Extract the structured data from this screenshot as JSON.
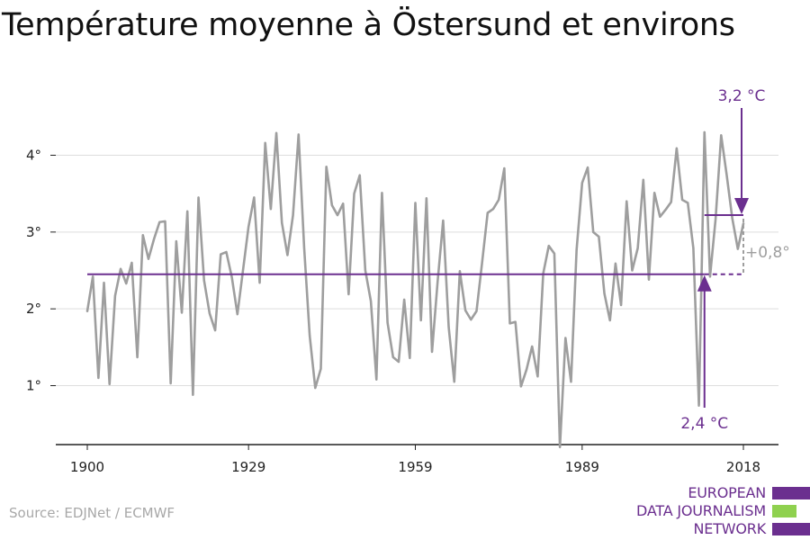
{
  "title": "Température moyenne à Östersund et environs",
  "source": "Source: EDJNet / ECMWF",
  "logo": {
    "lines": [
      "EUROPEAN",
      "DATA JOURNALISM",
      "NETWORK"
    ],
    "colors": {
      "purple": "#6b2f8f",
      "green": "#8fd14f"
    }
  },
  "colors": {
    "series": "#9e9e9e",
    "reference": "#6b2f8f",
    "grid": "#dddddd",
    "axis": "#222222"
  },
  "chart_data": {
    "type": "line",
    "title": "Température moyenne à Östersund et environs",
    "xlabel": "",
    "ylabel": "",
    "xlim": [
      1900,
      2018
    ],
    "ylim": [
      0.2,
      4.6
    ],
    "xticks": [
      1900,
      1929,
      1959,
      1989,
      2018
    ],
    "xtick_labels": [
      "1900",
      "1929",
      "1959",
      "1989",
      "2018"
    ],
    "yticks": [
      1,
      2,
      3,
      4
    ],
    "ytick_labels": [
      "1°",
      "2°",
      "3°",
      "4°"
    ],
    "grid": "horizontal",
    "series": [
      {
        "x": [
          1900,
          1901,
          1902,
          1903,
          1904,
          1905,
          1906,
          1907,
          1908,
          1909,
          1910,
          1911,
          1912,
          1913,
          1914,
          1915,
          1916,
          1917,
          1918,
          1919,
          1920,
          1921,
          1922,
          1923,
          1924,
          1925,
          1926,
          1927,
          1928,
          1929,
          1930,
          1931,
          1932,
          1933,
          1934,
          1935,
          1936,
          1937,
          1938,
          1939,
          1940,
          1941,
          1942,
          1943,
          1944,
          1945,
          1946,
          1947,
          1948,
          1949,
          1950,
          1951,
          1952,
          1953,
          1954,
          1955,
          1956,
          1957,
          1958,
          1959,
          1960,
          1961,
          1962,
          1963,
          1964,
          1965,
          1966,
          1967,
          1968,
          1969,
          1970,
          1971,
          1972,
          1973,
          1974,
          1975,
          1976,
          1977,
          1978,
          1979,
          1980,
          1981,
          1982,
          1983,
          1984,
          1985,
          1986,
          1987,
          1988,
          1989,
          1990,
          1991,
          1992,
          1993,
          1994,
          1995,
          1996,
          1997,
          1998,
          1999,
          2000,
          2001,
          2002,
          2003,
          2004,
          2005,
          2006,
          2007,
          2008,
          2009,
          2010,
          2011,
          2012,
          2013,
          2014,
          2015,
          2016,
          2017,
          2018
        ],
        "values": [
          1.97,
          2.42,
          1.1,
          2.34,
          1.02,
          2.17,
          2.52,
          2.33,
          2.6,
          1.37,
          2.96,
          2.65,
          2.91,
          3.13,
          3.14,
          1.03,
          2.88,
          1.95,
          3.27,
          0.88,
          3.45,
          2.37,
          1.94,
          1.72,
          2.71,
          2.74,
          2.41,
          1.93,
          2.5,
          3.07,
          3.45,
          2.34,
          4.16,
          3.3,
          4.29,
          3.12,
          2.7,
          3.22,
          4.27,
          2.8,
          1.65,
          0.97,
          1.22,
          3.85,
          3.35,
          3.22,
          3.37,
          2.19,
          3.5,
          3.74,
          2.5,
          2.1,
          1.08,
          3.51,
          1.82,
          1.37,
          1.31,
          2.12,
          1.36,
          3.38,
          1.85,
          3.44,
          1.44,
          2.35,
          3.15,
          1.76,
          1.05,
          2.49,
          1.98,
          1.86,
          1.97,
          2.6,
          3.25,
          3.3,
          3.42,
          3.83,
          1.81,
          1.83,
          0.99,
          1.21,
          1.51,
          1.12,
          2.46,
          2.82,
          2.72,
          0.2,
          1.62,
          1.05,
          2.77,
          3.64,
          3.84,
          3.0,
          2.94,
          2.2,
          1.85,
          2.59,
          2.05,
          3.4,
          2.5,
          2.79,
          3.68,
          2.38,
          3.51,
          3.2,
          3.29,
          3.39,
          4.09,
          3.42,
          3.38,
          2.79,
          0.74,
          4.3,
          2.42,
          3.17,
          4.26,
          3.74,
          3.18,
          2.78,
          3.11
        ]
      }
    ],
    "reference_lines": [
      {
        "from": 1900,
        "to": 2018,
        "value": 2.45,
        "label": "2,4 °C",
        "dashed_after": 2011
      },
      {
        "from": 2011,
        "to": 2018,
        "value": 3.22,
        "label": "3,2 °C"
      }
    ],
    "annotations": [
      {
        "text": "2,4 °C",
        "at_x": 2011
      },
      {
        "text": "3,2 °C",
        "at_x": 2018
      },
      {
        "text": "+0,8°",
        "at_x": 2018
      }
    ]
  }
}
